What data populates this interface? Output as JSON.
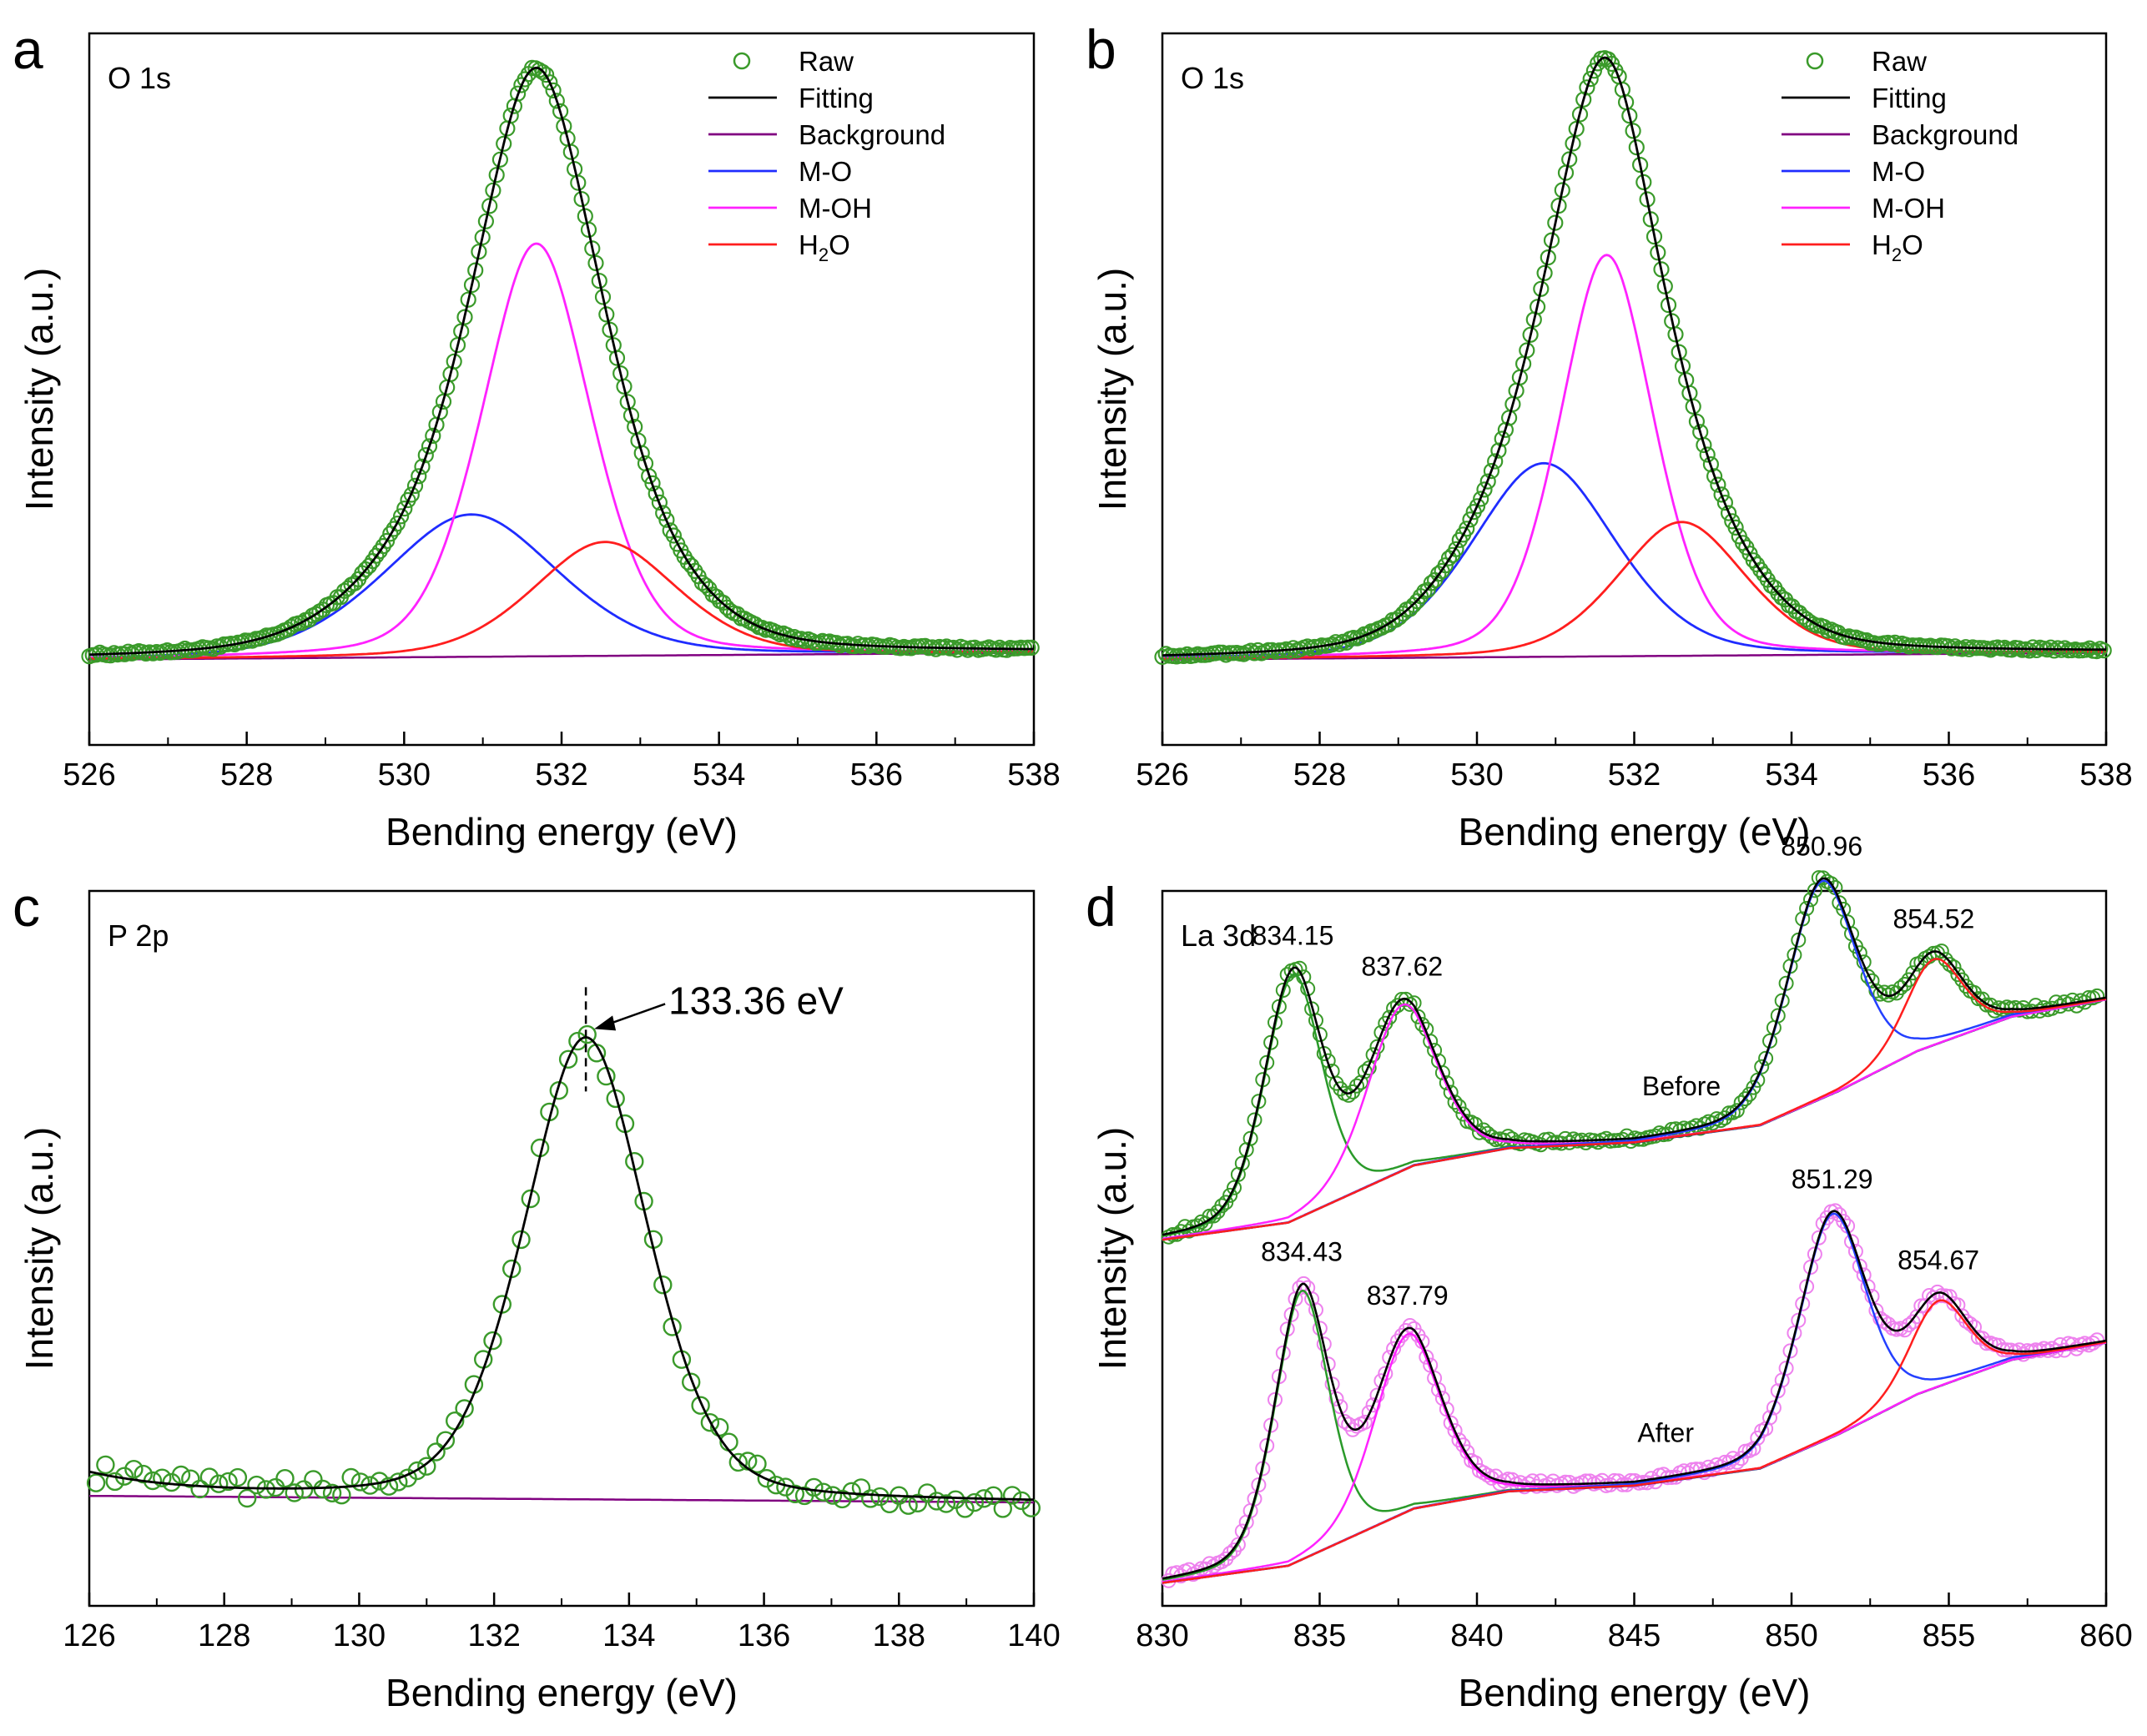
{
  "colors": {
    "raw_green": "#3a9a2a",
    "raw_pink": "#ee82ee",
    "fitting": "#000000",
    "background": "#800080",
    "mo": "#1f2cff",
    "moh": "#ff22ff",
    "h2o": "#ff1e1e",
    "la_bg": "#1a1a99",
    "la_peak1": "#2a9a2a",
    "la_peak2": "#ff22ff",
    "la_peak3": "#2440ff",
    "la_peak4": "#ff1e1e"
  },
  "chart_data": [
    {
      "id": "a",
      "type": "line",
      "panel_letter": "a",
      "title": "O 1s",
      "xlabel": "Bending energy (eV)",
      "ylabel": "Intensity (a.u.)",
      "xlim": [
        526,
        538
      ],
      "ylim": [
        -0.15,
        1.1
      ],
      "xticks": [
        526,
        528,
        530,
        532,
        534,
        536,
        538
      ],
      "legend": {
        "position": "top-right",
        "entries": [
          {
            "label": "Raw",
            "style": "marker",
            "color_key": "raw_green"
          },
          {
            "label": "Fitting",
            "style": "line",
            "color_key": "fitting"
          },
          {
            "label": "Background",
            "style": "line",
            "color_key": "background"
          },
          {
            "label": "M-O",
            "style": "line",
            "color_key": "mo"
          },
          {
            "label": "M-OH",
            "style": "line",
            "color_key": "moh"
          },
          {
            "label_main": "H",
            "label_sub": "2",
            "label_end": "O",
            "style": "line",
            "color_key": "h2o"
          }
        ]
      },
      "background": {
        "x": [
          526,
          538
        ],
        "y": [
          0,
          0.012
        ]
      },
      "series": [
        {
          "name": "M-O",
          "center": 530.85,
          "height": 0.25,
          "width": 1.15,
          "color_key": "mo"
        },
        {
          "name": "M-OH",
          "center": 531.68,
          "height": 0.725,
          "width": 0.72,
          "color_key": "moh"
        },
        {
          "name": "H2O",
          "center": 532.55,
          "height": 0.2,
          "width": 0.95,
          "color_key": "h2o"
        }
      ],
      "raw": {
        "from": 526,
        "to": 538,
        "step": 0.045,
        "color_key": "raw_green"
      }
    },
    {
      "id": "b",
      "type": "line",
      "panel_letter": "b",
      "title": "O 1s",
      "xlabel": "Bending energy (eV)",
      "ylabel": "Intensity (a.u.)",
      "xlim": [
        526,
        538
      ],
      "ylim": [
        -0.15,
        1.1
      ],
      "xticks": [
        526,
        528,
        530,
        532,
        534,
        536,
        538
      ],
      "legend": {
        "position": "top-right",
        "entries": [
          {
            "label": "Raw",
            "style": "marker",
            "color_key": "raw_green"
          },
          {
            "label": "Fitting",
            "style": "line",
            "color_key": "fitting"
          },
          {
            "label": "Background",
            "style": "line",
            "color_key": "background"
          },
          {
            "label": "M-O",
            "style": "line",
            "color_key": "mo"
          },
          {
            "label": "M-OH",
            "style": "line",
            "color_key": "moh"
          },
          {
            "label_main": "H",
            "label_sub": "2",
            "label_end": "O",
            "style": "line",
            "color_key": "h2o"
          }
        ]
      },
      "background": {
        "x": [
          526,
          538
        ],
        "y": [
          0,
          0.012
        ]
      },
      "series": [
        {
          "name": "M-O",
          "center": 530.85,
          "height": 0.34,
          "width": 0.95,
          "color_key": "mo"
        },
        {
          "name": "M-OH",
          "center": 531.65,
          "height": 0.705,
          "width": 0.62,
          "color_key": "moh"
        },
        {
          "name": "H2O",
          "center": 532.6,
          "height": 0.235,
          "width": 0.85,
          "color_key": "h2o"
        }
      ],
      "raw": {
        "from": 526,
        "to": 538,
        "step": 0.045,
        "color_key": "raw_green"
      }
    },
    {
      "id": "c",
      "type": "line",
      "panel_letter": "c",
      "title": "P 2p",
      "xlabel": "Bending energy (eV)",
      "ylabel": "Intensity (a.u.)",
      "xlim": [
        126,
        140
      ],
      "ylim": [
        -0.2,
        1.1
      ],
      "xticks": [
        126,
        128,
        130,
        132,
        134,
        136,
        138,
        140
      ],
      "background": {
        "x": [
          126,
          140
        ],
        "y": [
          0.0,
          -0.012
        ]
      },
      "edge_rise": {
        "height": 0.04,
        "width": 1.4
      },
      "series": [
        {
          "name": "P 2p",
          "center": 133.36,
          "height": 0.84,
          "width": 0.95,
          "color_key": "fitting"
        }
      ],
      "raw": {
        "from": 126,
        "to": 140,
        "step": 0.14,
        "color_key": "raw_green",
        "noise": 0.012
      },
      "annotations": [
        {
          "text": "133.36 eV",
          "marker_x": 133.36
        }
      ]
    },
    {
      "id": "d",
      "type": "line",
      "panel_letter": "d",
      "title": "La 3d",
      "xlabel": "Bending energy (eV)",
      "ylabel": "Intensity (a.u.)",
      "xlim": [
        830,
        860
      ],
      "ylim": [
        0,
        1.25
      ],
      "xticks": [
        830,
        835,
        840,
        845,
        850,
        855,
        860
      ],
      "groups": [
        {
          "label": "Before",
          "offset": 0.6,
          "raw_color_key": "raw_green",
          "background_points": [
            [
              830,
              0.0
            ],
            [
              834,
              0.03
            ],
            [
              838,
              0.13
            ],
            [
              841,
              0.16
            ],
            [
              845,
              0.17
            ],
            [
              849,
              0.2
            ],
            [
              851.5,
              0.26
            ],
            [
              854,
              0.33
            ],
            [
              857,
              0.39
            ],
            [
              860,
              0.42
            ]
          ],
          "peaks": [
            {
              "label": "834.15",
              "center": 834.15,
              "height": 0.43,
              "width": 0.95,
              "color_key": "la_peak1"
            },
            {
              "label": "837.62",
              "center": 837.62,
              "height": 0.29,
              "width": 1.15,
              "color_key": "la_peak2"
            },
            {
              "label": "850.96",
              "center": 850.96,
              "height": 0.38,
              "width": 1.15,
              "color_key": "la_peak3"
            },
            {
              "label": "854.52",
              "center": 854.52,
              "height": 0.15,
              "width": 0.95,
              "color_key": "la_peak4"
            }
          ]
        },
        {
          "label": "After",
          "offset": 0.0,
          "raw_color_key": "raw_pink",
          "background_points": [
            [
              830,
              0.0
            ],
            [
              834,
              0.03
            ],
            [
              838,
              0.13
            ],
            [
              841,
              0.16
            ],
            [
              845,
              0.17
            ],
            [
              849,
              0.2
            ],
            [
              851.5,
              0.26
            ],
            [
              854,
              0.33
            ],
            [
              857,
              0.39
            ],
            [
              860,
              0.42
            ]
          ],
          "peaks": [
            {
              "label": "834.43",
              "center": 834.43,
              "height": 0.47,
              "width": 0.9,
              "color_key": "la_peak1"
            },
            {
              "label": "837.79",
              "center": 837.79,
              "height": 0.31,
              "width": 1.1,
              "color_key": "la_peak2"
            },
            {
              "label": "851.29",
              "center": 851.29,
              "height": 0.39,
              "width": 1.1,
              "color_key": "la_peak3"
            },
            {
              "label": "854.67",
              "center": 854.67,
              "height": 0.15,
              "width": 0.95,
              "color_key": "la_peak4"
            }
          ]
        }
      ]
    }
  ]
}
